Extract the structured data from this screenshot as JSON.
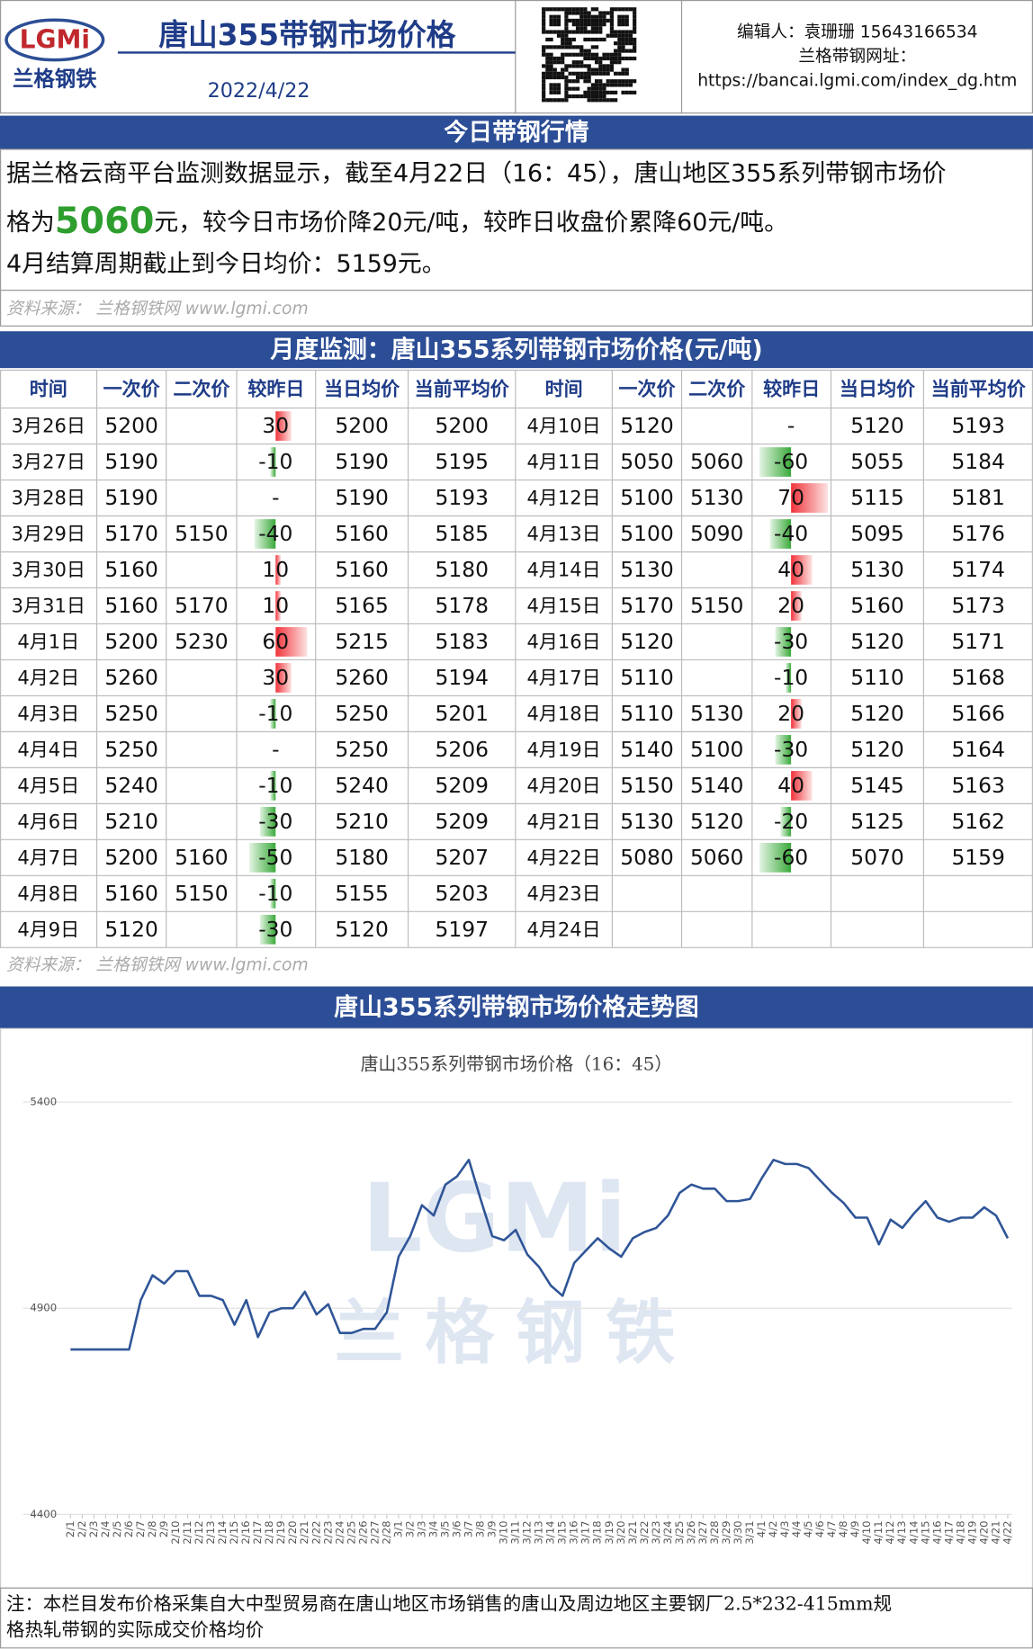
{
  "header": {
    "logo": "LGMi",
    "logo_cn": "兰格钢铁",
    "title": "唐山355带钢市场价格",
    "date": "2022/4/22",
    "editor": "编辑人：袁珊珊 15643166534",
    "site_label": "兰格带钢网址：",
    "site_url": "https://bancai.lgmi.com/index_dg.htm"
  },
  "section1": {
    "title": "今日带钢行情",
    "text1": "据兰格云商平台监测数据显示，截至4月22日（16：45），唐山地区355系列带钢市场价",
    "text2": "格为",
    "price": "5060",
    "text3": "元，较今日市场价降20元/吨，较昨日收盘价累降60元/吨。",
    "text4": "4月结算周期截止到今日均价：5159元。",
    "source": "资料来源： 兰格钢铁网 www.lgmi.com"
  },
  "table": {
    "title": "月度监测：唐山355系列带钢市场价格(元/吨)",
    "header": [
      "时间",
      "一次价",
      "二次价",
      "较昨日",
      "当日均价",
      "当前平均价",
      "时间",
      "一次价",
      "二次价",
      "较昨日",
      "当日均价",
      "当前平均价"
    ],
    "rows": [
      [
        "3月26日",
        5200,
        null,
        30,
        5200,
        5200,
        "4月10日",
        5120,
        null,
        "-",
        5120,
        5193
      ],
      [
        "3月27日",
        5190,
        null,
        -10,
        5190,
        5195,
        "4月11日",
        5050,
        5060,
        -60,
        5055,
        5184
      ],
      [
        "3月28日",
        5190,
        null,
        "-",
        5190,
        5193,
        "4月12日",
        5100,
        5130,
        70,
        5115,
        5181
      ],
      [
        "3月29日",
        5170,
        5150,
        -40,
        5160,
        5185,
        "4月13日",
        5100,
        5090,
        -40,
        5095,
        5176
      ],
      [
        "3月30日",
        5160,
        null,
        10,
        5160,
        5180,
        "4月14日",
        5130,
        null,
        40,
        5130,
        5174
      ],
      [
        "3月31日",
        5160,
        5170,
        10,
        5165,
        5178,
        "4月15日",
        5170,
        5150,
        20,
        5160,
        5173
      ],
      [
        "4月1日",
        5200,
        5230,
        60,
        5215,
        5183,
        "4月16日",
        5120,
        null,
        -30,
        5120,
        5171
      ],
      [
        "4月2日",
        5260,
        null,
        30,
        5260,
        5194,
        "4月17日",
        5110,
        null,
        -10,
        5110,
        5168
      ],
      [
        "4月3日",
        5250,
        null,
        -10,
        5250,
        5201,
        "4月18日",
        5110,
        5130,
        20,
        5120,
        5166
      ],
      [
        "4月4日",
        5250,
        null,
        "-",
        5250,
        5206,
        "4月19日",
        5140,
        5100,
        -30,
        5120,
        5164
      ],
      [
        "4月5日",
        5240,
        null,
        -10,
        5240,
        5209,
        "4月20日",
        5150,
        5140,
        40,
        5145,
        5163
      ],
      [
        "4月6日",
        5210,
        null,
        -30,
        5210,
        5209,
        "4月21日",
        5130,
        5120,
        -20,
        5125,
        5162
      ],
      [
        "4月7日",
        5200,
        5160,
        -50,
        5180,
        5207,
        "4月22日",
        5080,
        5060,
        -60,
        5070,
        5159
      ],
      [
        "4月8日",
        5160,
        5150,
        -10,
        5155,
        5203,
        "4月23日",
        null,
        null,
        null,
        null,
        null
      ],
      [
        "4月9日",
        5120,
        null,
        -30,
        5120,
        5197,
        "4月24日",
        null,
        null,
        null,
        null,
        null
      ]
    ],
    "source": "资料来源： 兰格钢铁网 www.lgmi.com"
  },
  "chart_section_title": "唐山355系列带钢市场价格走势图",
  "chart_data": {
    "type": "line",
    "title": "唐山355系列带钢市场价格（16：45）",
    "watermark": "LGMi",
    "watermark_cn": "兰格钢铁",
    "x": [
      "2/1",
      "2/2",
      "2/3",
      "2/4",
      "2/5",
      "2/6",
      "2/7",
      "2/8",
      "2/9",
      "2/10",
      "2/11",
      "2/12",
      "2/13",
      "2/14",
      "2/15",
      "2/16",
      "2/17",
      "2/18",
      "2/19",
      "2/20",
      "2/21",
      "2/22",
      "2/23",
      "2/24",
      "2/25",
      "2/26",
      "2/27",
      "2/28",
      "3/1",
      "3/2",
      "3/3",
      "3/4",
      "3/5",
      "3/6",
      "3/7",
      "3/8",
      "3/9",
      "3/10",
      "3/11",
      "3/12",
      "3/13",
      "3/14",
      "3/15",
      "3/16",
      "3/17",
      "3/18",
      "3/19",
      "3/20",
      "3/21",
      "3/22",
      "3/23",
      "3/24",
      "3/25",
      "3/26",
      "3/27",
      "3/28",
      "3/29",
      "3/30",
      "3/31",
      "4/1",
      "4/2",
      "4/3",
      "4/4",
      "4/5",
      "4/6",
      "4/7",
      "4/8",
      "4/9",
      "4/10",
      "4/11",
      "4/12",
      "4/13",
      "4/14",
      "4/15",
      "4/16",
      "4/17",
      "4/18",
      "4/19",
      "4/20",
      "4/21",
      "4/22"
    ],
    "values": [
      4800,
      4800,
      4800,
      4800,
      4800,
      4800,
      4920,
      4980,
      4960,
      4990,
      4990,
      4930,
      4930,
      4920,
      4860,
      4920,
      4830,
      4890,
      4900,
      4900,
      4940,
      4885,
      4910,
      4840,
      4840,
      4850,
      4850,
      4890,
      5025,
      5075,
      5150,
      5125,
      5200,
      5220,
      5260,
      5165,
      5075,
      5065,
      5090,
      5030,
      5000,
      4955,
      4930,
      5010,
      5040,
      5070,
      5045,
      5025,
      5070,
      5085,
      5095,
      5125,
      5180,
      5200,
      5190,
      5190,
      5160,
      5160,
      5165,
      5215,
      5260,
      5250,
      5250,
      5240,
      5210,
      5180,
      5155,
      5120,
      5120,
      5055,
      5115,
      5095,
      5130,
      5160,
      5120,
      5110,
      5120,
      5120,
      5145,
      5125,
      5070
    ],
    "color": "#2f5597",
    "ylim": [
      4400,
      5400
    ],
    "yticks": [
      4400,
      4900,
      5400
    ],
    "grid": true
  },
  "note": {
    "line1": "注：本栏目发布价格采集自大中型贸易商在唐山地区市场销售的唐山及周边地区主要钢厂2.5*232-415mm规",
    "line2": "格热轧带钢的实际成交价格均价"
  }
}
